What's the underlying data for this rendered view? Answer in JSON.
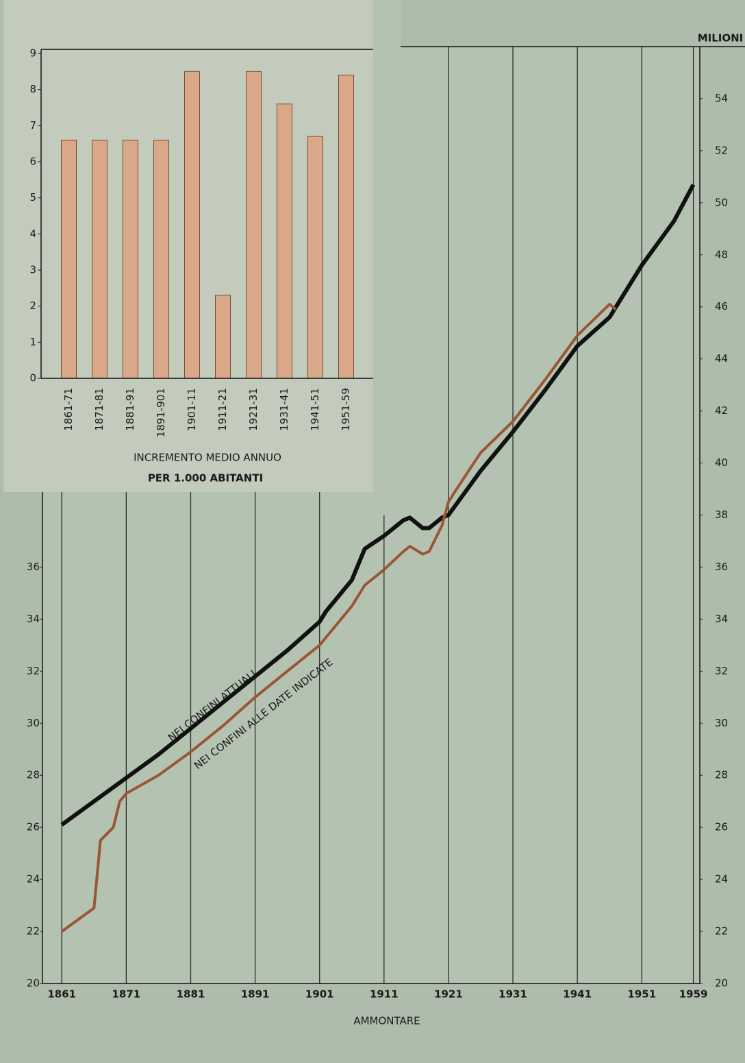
{
  "chart_data": [
    {
      "type": "line",
      "x_label": "AMMONTARE",
      "y2_label": "MILIONI",
      "xlim": [
        1858,
        1960
      ],
      "xticks": [
        1861,
        1871,
        1881,
        1891,
        1901,
        1911,
        1921,
        1931,
        1941,
        1951,
        1959
      ],
      "ylim": [
        20,
        56
      ],
      "yticks": [
        20,
        22,
        24,
        26,
        28,
        30,
        32,
        34,
        36
      ],
      "y2lim": [
        20,
        56
      ],
      "y2ticks": [
        20,
        22,
        24,
        26,
        28,
        30,
        32,
        34,
        36,
        38,
        40,
        42,
        44,
        46,
        48,
        50,
        52,
        54
      ],
      "grid": true,
      "series": [
        {
          "name": "NEI CONFINI ATTUALI",
          "color": "#111111",
          "x": [
            1861,
            1866,
            1871,
            1876,
            1881,
            1886,
            1891,
            1896,
            1901,
            1902,
            1906,
            1908,
            1911,
            1914,
            1915,
            1917,
            1918,
            1920,
            1921,
            1926,
            1931,
            1936,
            1941,
            1946,
            1951,
            1956,
            1959
          ],
          "values": [
            26.1,
            27.0,
            27.9,
            28.8,
            29.8,
            30.8,
            31.8,
            32.8,
            33.9,
            34.3,
            35.5,
            36.7,
            37.2,
            37.8,
            37.9,
            37.5,
            37.5,
            37.9,
            38.0,
            39.7,
            41.2,
            42.8,
            44.5,
            45.6,
            47.6,
            49.3,
            50.7
          ]
        },
        {
          "name": "NEI CONFINI ALLE DATE INDICATE",
          "color": "#9a5634",
          "x": [
            1861,
            1866,
            1867,
            1869,
            1870,
            1871,
            1876,
            1881,
            1886,
            1891,
            1896,
            1901,
            1906,
            1908,
            1911,
            1914,
            1915,
            1917,
            1918,
            1920,
            1921,
            1922,
            1926,
            1931,
            1936,
            1941,
            1946,
            1947
          ],
          "values": [
            22.0,
            22.9,
            25.5,
            26.0,
            27.0,
            27.3,
            28.0,
            28.9,
            29.9,
            31.0,
            32.0,
            33.0,
            34.5,
            35.3,
            35.9,
            36.6,
            36.8,
            36.5,
            36.6,
            37.6,
            38.5,
            38.9,
            40.4,
            41.6,
            43.2,
            44.9,
            46.1,
            45.9
          ]
        }
      ]
    },
    {
      "type": "bar",
      "title": "INCREMENTO MEDIO ANNUO",
      "subtitle": "PER 1.000 ABITANTI",
      "categories": [
        "1861-71",
        "1871-81",
        "1881-91",
        "1891-901",
        "1901-11",
        "1911-21",
        "1921-31",
        "1931-41",
        "1941-51",
        "1951-59"
      ],
      "values": [
        6.6,
        6.6,
        6.6,
        6.6,
        8.5,
        2.3,
        8.5,
        7.6,
        6.7,
        8.4
      ],
      "color": "#d9a888",
      "ylim": [
        0,
        9
      ],
      "yticks": [
        0,
        1,
        2,
        3,
        4,
        5,
        6,
        7,
        8,
        9
      ]
    }
  ]
}
